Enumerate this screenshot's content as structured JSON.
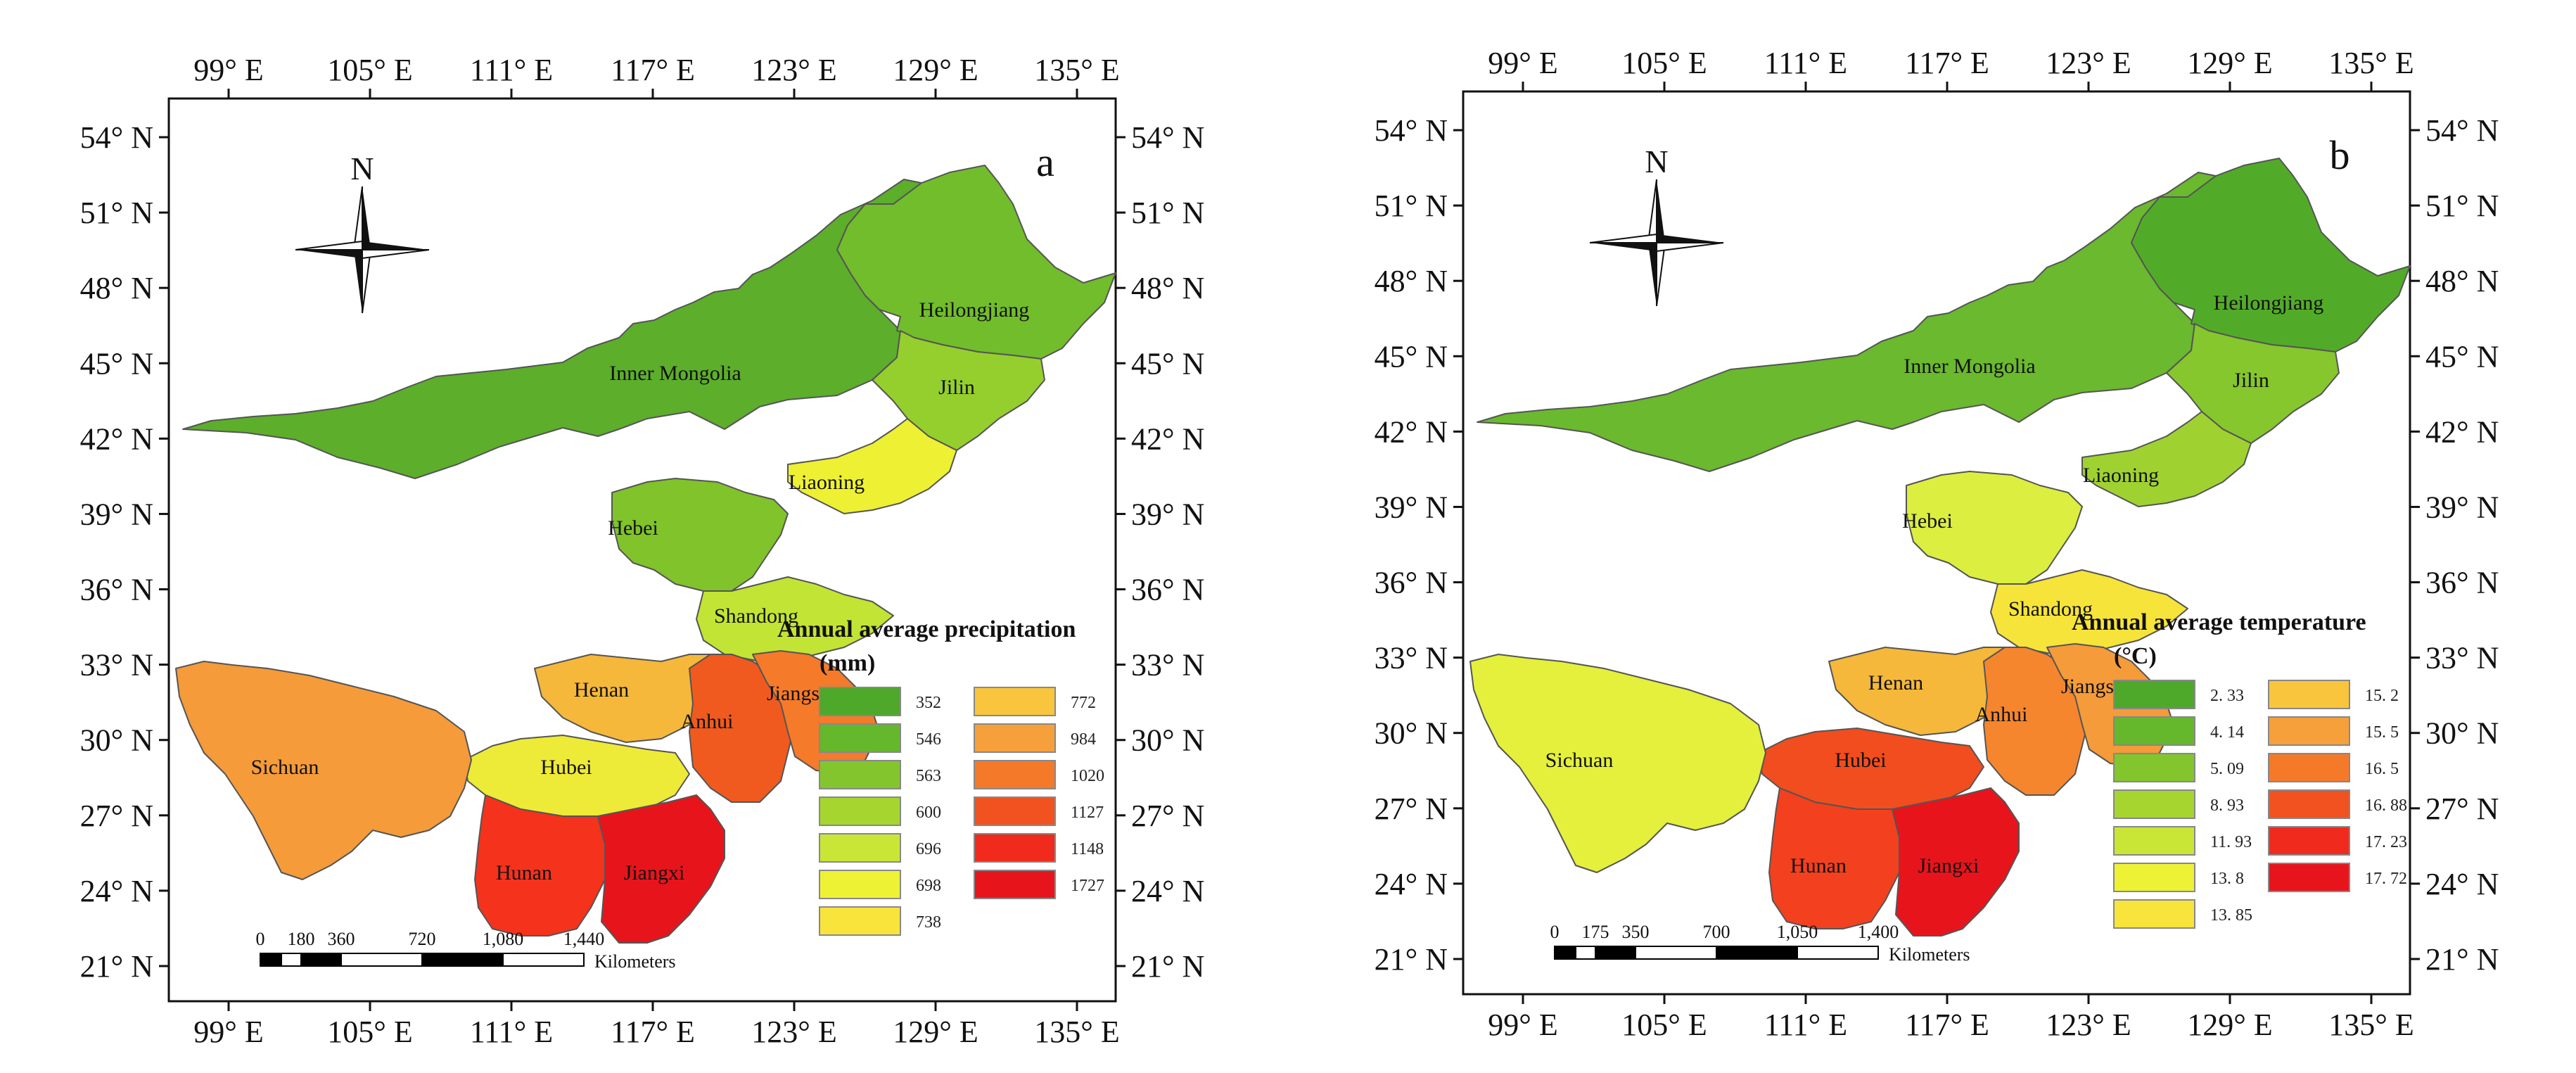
{
  "panels": [
    {
      "letter": "a",
      "legend": {
        "title": "Annual average precipitation",
        "unit": "(mm)",
        "left": [
          "352",
          "546",
          "563",
          "600",
          "696",
          "698",
          "738"
        ],
        "right": [
          "772",
          "984",
          "1020",
          "1127",
          "1148",
          "1727"
        ]
      },
      "scale": {
        "ticks": [
          "0",
          "180",
          "360",
          "720",
          "1,080",
          "1,440"
        ],
        "unit": "Kilometers"
      },
      "colors": {
        "inner_mongolia": "#5cae2b",
        "heilongjiang": "#72bd2b",
        "jilin": "#95cf2d",
        "liaoning": "#eef033",
        "hebei": "#80c32a",
        "shandong": "#c2e434",
        "henan": "#f5b83a",
        "hubei": "#eeea38",
        "anhui": "#f05a1f",
        "jiangsu": "#f57a2a",
        "sichuan": "#f59b3a",
        "hunan": "#f5321c",
        "jiangxi": "#e8141c"
      }
    },
    {
      "letter": "b",
      "legend": {
        "title": "Annual average temperature",
        "unit": "(°C)",
        "left": [
          "2. 33",
          "4. 14",
          "5. 09",
          "8. 93",
          "11. 93",
          "13. 8",
          "13. 85"
        ],
        "right": [
          "15. 2",
          "15. 5",
          "16. 5",
          "16. 88",
          "17. 23",
          "17. 72"
        ]
      },
      "scale": {
        "ticks": [
          "0",
          "175",
          "350",
          "700",
          "1,050",
          "1,400"
        ],
        "unit": "Kilometers"
      },
      "colors": {
        "inner_mongolia": "#6ab92e",
        "heilongjiang": "#52ab28",
        "jilin": "#85c72c",
        "liaoning": "#9fd231",
        "hebei": "#dcee40",
        "shandong": "#f6e43a",
        "henan": "#f5b83a",
        "hubei": "#f24d1e",
        "anhui": "#f5862e",
        "jiangsu": "#f59b3a",
        "sichuan": "#e4f03c",
        "hunan": "#f3401f",
        "jiangxi": "#e8141c"
      }
    }
  ],
  "provinces": {
    "inner_mongolia": "Inner Mongolia",
    "heilongjiang": "Heilongjiang",
    "jilin": "Jilin",
    "liaoning": "Liaoning",
    "hebei": "Hebei",
    "shandong": "Shandong",
    "henan": "Henan",
    "hubei": "Hubei",
    "anhui": "Anhui",
    "jiangsu": "Jiangsu",
    "sichuan": "Sichuan",
    "hunan": "Hunan",
    "jiangxi": "Jiangxi"
  },
  "legend_colors": {
    "left": [
      "#4ea82a",
      "#65b72b",
      "#83c52c",
      "#a6d52f",
      "#c9e636",
      "#eef235",
      "#f8e43a"
    ],
    "right": [
      "#f8c53c",
      "#f5a03a",
      "#f47a2a",
      "#f2521f",
      "#f02a1c",
      "#e8141c"
    ]
  },
  "axes": {
    "lon_labels": [
      "99° E",
      "105° E",
      "111° E",
      "117° E",
      "123° E",
      "129° E",
      "135° E"
    ],
    "lat_labels": [
      "54° N",
      "51° N",
      "48° N",
      "45° N",
      "42° N",
      "39° N",
      "36° N",
      "33° N",
      "30° N",
      "27° N",
      "24° N",
      "21° N"
    ]
  },
  "north_label": "N"
}
